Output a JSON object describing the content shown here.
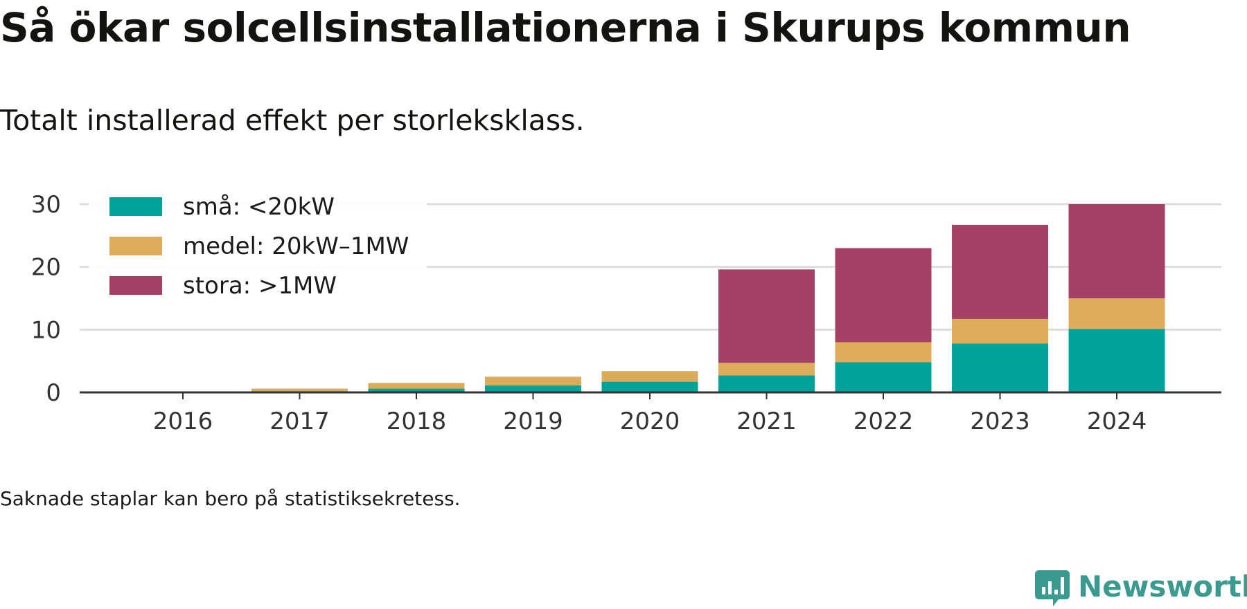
{
  "chart_data": {
    "type": "bar",
    "stacked": true,
    "title": "Så ökar solcellsinstallationerna i Skurups kommun",
    "subtitle": "Totalt installerad effekt per storleksklass.",
    "categories": [
      "2016",
      "2017",
      "2018",
      "2019",
      "2020",
      "2021",
      "2022",
      "2023",
      "2024"
    ],
    "series": [
      {
        "name": "små: <20kW",
        "color": "#00a39a",
        "values": [
          0,
          0.2,
          0.6,
          1.1,
          1.7,
          2.7,
          4.8,
          7.8,
          10.1
        ]
      },
      {
        "name": "medel: 20kW–1MW",
        "color": "#ddac5a",
        "values": [
          0,
          0.4,
          0.9,
          1.4,
          1.7,
          2.0,
          3.2,
          3.9,
          4.9
        ]
      },
      {
        "name": "stora: >1MW",
        "color": "#a54166",
        "values": [
          0,
          0,
          0,
          0,
          0,
          14.9,
          15.0,
          15.0,
          15.0
        ]
      }
    ],
    "yticks": [
      0,
      10,
      20,
      30
    ],
    "ylim": [
      0,
      30
    ],
    "xlabel": "",
    "ylabel": "",
    "grid": "horizontal",
    "legend_position": "top-left"
  },
  "footnote": "Saknade staplar kan bero på statistiksekretess.",
  "brand": {
    "name": "Newsworthy",
    "color": "#3b9a90",
    "icon": "newsworthy-logo-icon"
  }
}
